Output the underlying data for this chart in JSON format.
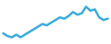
{
  "y": [
    6,
    4,
    3,
    5,
    3,
    5,
    7,
    9,
    11,
    13,
    12,
    14,
    16,
    18,
    17,
    19,
    22,
    20,
    21,
    26,
    23,
    24,
    18,
    16,
    17
  ],
  "line_color": "#3aabdc",
  "line_width": 1.8,
  "background_color": "#ffffff"
}
